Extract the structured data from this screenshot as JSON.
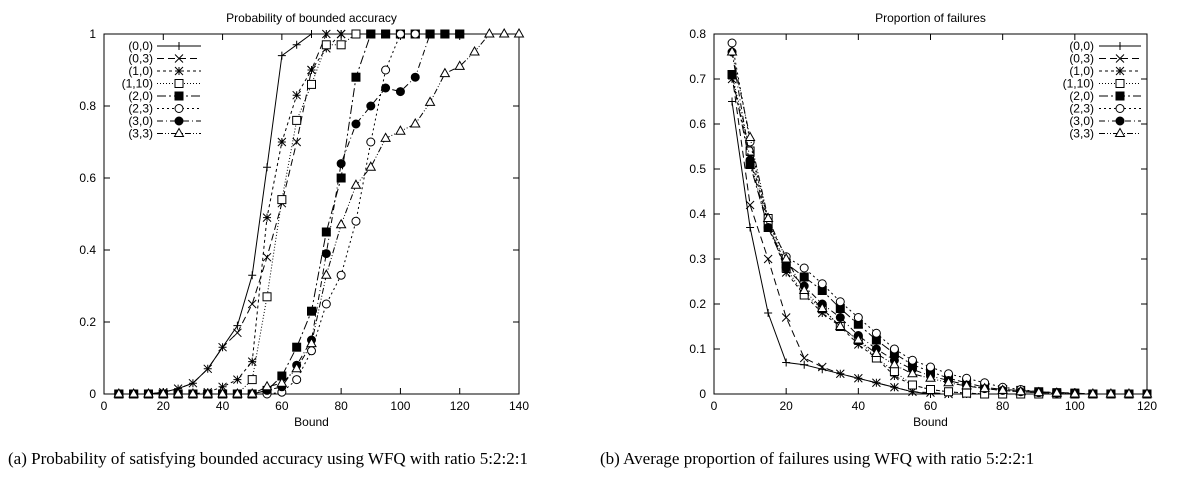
{
  "chart_data": [
    {
      "type": "line",
      "title": "Probability of bounded accuracy",
      "xlabel": "Bound",
      "ylabel": "",
      "xlim": [
        0,
        140
      ],
      "ylim": [
        0,
        1
      ],
      "xticks": [
        0,
        20,
        40,
        60,
        80,
        100,
        120,
        140
      ],
      "yticks": [
        0,
        0.2,
        0.4,
        0.6,
        0.8,
        1
      ],
      "legend_position": "top-left",
      "series": [
        {
          "name": "(0,0)",
          "marker": "plus",
          "dash": "",
          "x": [
            5,
            10,
            15,
            20,
            25,
            30,
            35,
            40,
            45,
            50,
            55,
            60,
            65,
            70,
            75,
            80,
            85,
            90,
            95,
            100,
            105,
            110,
            115,
            120
          ],
          "y": [
            0,
            0,
            0,
            0.005,
            0.015,
            0.03,
            0.07,
            0.13,
            0.19,
            0.33,
            0.63,
            0.94,
            0.97,
            1,
            1,
            1,
            1,
            1,
            1,
            1,
            1,
            1,
            1,
            1
          ]
        },
        {
          "name": "(0,3)",
          "marker": "cross",
          "dash": "7,4",
          "x": [
            5,
            10,
            15,
            20,
            25,
            30,
            35,
            40,
            45,
            50,
            55,
            60,
            65,
            70,
            75,
            80,
            85,
            90,
            95,
            100,
            105,
            110,
            115,
            120
          ],
          "y": [
            0,
            0,
            0,
            0.005,
            0.015,
            0.03,
            0.07,
            0.13,
            0.17,
            0.25,
            0.38,
            0.53,
            0.7,
            0.9,
            1,
            1,
            1,
            1,
            1,
            1,
            1,
            1,
            1,
            1
          ]
        },
        {
          "name": "(1,0)",
          "marker": "star",
          "dash": "3,3",
          "x": [
            5,
            10,
            15,
            20,
            25,
            30,
            35,
            40,
            45,
            50,
            55,
            60,
            65,
            70,
            75,
            80,
            85,
            90,
            95,
            100,
            105,
            110,
            115,
            120
          ],
          "y": [
            0,
            0,
            0,
            0,
            0,
            0,
            0.005,
            0.02,
            0.04,
            0.09,
            0.49,
            0.7,
            0.83,
            0.9,
            0.96,
            1,
            1,
            1,
            1,
            1,
            1,
            1,
            1,
            1
          ]
        },
        {
          "name": "(1,10)",
          "marker": "square-open",
          "dash": "1,2",
          "x": [
            5,
            10,
            15,
            20,
            25,
            30,
            35,
            40,
            45,
            50,
            55,
            60,
            65,
            70,
            75,
            80,
            85,
            90,
            95,
            100,
            105,
            110,
            115,
            120
          ],
          "y": [
            0,
            0,
            0,
            0,
            0,
            0,
            0,
            0,
            0,
            0.04,
            0.27,
            0.54,
            0.76,
            0.86,
            0.97,
            0.97,
            1,
            1,
            1,
            1,
            1,
            1,
            1,
            1
          ]
        },
        {
          "name": "(2,0)",
          "marker": "square-filled",
          "dash": "9,3,2,3",
          "x": [
            5,
            10,
            15,
            20,
            25,
            30,
            35,
            40,
            45,
            50,
            55,
            60,
            65,
            70,
            75,
            80,
            85,
            90,
            95,
            100,
            105,
            110,
            115,
            120
          ],
          "y": [
            0,
            0,
            0,
            0,
            0,
            0,
            0,
            0,
            0,
            0,
            0.01,
            0.05,
            0.13,
            0.23,
            0.45,
            0.6,
            0.88,
            1,
            1,
            1,
            1,
            1,
            1,
            1
          ]
        },
        {
          "name": "(2,3)",
          "marker": "circle-open",
          "dash": "2,3",
          "x": [
            5,
            10,
            15,
            20,
            25,
            30,
            35,
            40,
            45,
            50,
            55,
            60,
            65,
            70,
            75,
            80,
            85,
            90,
            95,
            100,
            105,
            110,
            115,
            120
          ],
          "y": [
            0,
            0,
            0,
            0,
            0,
            0,
            0,
            0,
            0,
            0,
            0,
            0.005,
            0.04,
            0.12,
            0.25,
            0.33,
            0.48,
            0.7,
            0.9,
            1,
            1,
            1,
            1,
            1
          ]
        },
        {
          "name": "(3,0)",
          "marker": "circle-filled",
          "dash": "6,3,1,3",
          "x": [
            5,
            10,
            15,
            20,
            25,
            30,
            35,
            40,
            45,
            50,
            55,
            60,
            65,
            70,
            75,
            80,
            85,
            90,
            95,
            100,
            105,
            110,
            115,
            120
          ],
          "y": [
            0,
            0,
            0,
            0,
            0,
            0,
            0,
            0,
            0,
            0,
            0.01,
            0.02,
            0.08,
            0.15,
            0.39,
            0.64,
            0.75,
            0.8,
            0.85,
            0.84,
            0.88,
            1,
            1,
            1
          ]
        },
        {
          "name": "(3,3)",
          "marker": "triangle-open",
          "dash": "6,2,1,2,1,2",
          "x": [
            5,
            10,
            15,
            20,
            25,
            30,
            35,
            40,
            45,
            50,
            55,
            60,
            65,
            70,
            75,
            80,
            85,
            90,
            95,
            100,
            105,
            110,
            115,
            120,
            125,
            130,
            135,
            140
          ],
          "y": [
            0,
            0,
            0,
            0,
            0,
            0,
            0,
            0,
            0,
            0,
            0.02,
            0.03,
            0.07,
            0.14,
            0.33,
            0.47,
            0.58,
            0.63,
            0.71,
            0.73,
            0.75,
            0.81,
            0.89,
            0.91,
            0.95,
            1,
            1,
            1
          ]
        }
      ]
    },
    {
      "type": "line",
      "title": "Proportion of failures",
      "xlabel": "Bound",
      "ylabel": "",
      "xlim": [
        0,
        120
      ],
      "ylim": [
        0,
        0.8
      ],
      "xticks": [
        0,
        20,
        40,
        60,
        80,
        100,
        120
      ],
      "yticks": [
        0,
        0.1,
        0.2,
        0.3,
        0.4,
        0.5,
        0.6,
        0.7,
        0.8
      ],
      "legend_position": "top-right",
      "series": [
        {
          "name": "(0,0)",
          "marker": "plus",
          "dash": "",
          "x": [
            5,
            10,
            15,
            20,
            25,
            30,
            35,
            40,
            45,
            50,
            55,
            60,
            65,
            70,
            75,
            80,
            85,
            90,
            95,
            100,
            105,
            110,
            115,
            120
          ],
          "y": [
            0.65,
            0.37,
            0.18,
            0.07,
            0.065,
            0.055,
            0.045,
            0.035,
            0.025,
            0.015,
            0.005,
            0,
            0,
            0,
            0,
            0,
            0,
            0,
            0,
            0,
            0,
            0,
            0,
            0
          ]
        },
        {
          "name": "(0,3)",
          "marker": "cross",
          "dash": "7,4",
          "x": [
            5,
            10,
            15,
            20,
            25,
            30,
            35,
            40,
            45,
            50,
            55,
            60,
            65,
            70,
            75,
            80,
            85,
            90,
            95,
            100,
            105,
            110,
            115,
            120
          ],
          "y": [
            0.71,
            0.42,
            0.3,
            0.17,
            0.08,
            0.06,
            0.045,
            0.035,
            0.025,
            0.015,
            0.005,
            0.003,
            0,
            0,
            0,
            0,
            0,
            0,
            0,
            0,
            0,
            0,
            0,
            0
          ]
        },
        {
          "name": "(1,0)",
          "marker": "star",
          "dash": "3,3",
          "x": [
            5,
            10,
            15,
            20,
            25,
            30,
            35,
            40,
            45,
            50,
            55,
            60,
            65,
            70,
            75,
            80,
            85,
            90,
            95,
            100,
            105,
            110,
            115,
            120
          ],
          "y": [
            0.7,
            0.53,
            0.38,
            0.27,
            0.22,
            0.18,
            0.15,
            0.11,
            0.08,
            0.04,
            0.02,
            0.01,
            0.005,
            0.002,
            0,
            0,
            0,
            0,
            0,
            0,
            0,
            0,
            0,
            0
          ]
        },
        {
          "name": "(1,10)",
          "marker": "square-open",
          "dash": "1,2",
          "x": [
            5,
            10,
            15,
            20,
            25,
            30,
            35,
            40,
            45,
            50,
            55,
            60,
            65,
            70,
            75,
            80,
            85,
            90,
            95,
            100,
            105,
            110,
            115,
            120
          ],
          "y": [
            0.71,
            0.54,
            0.39,
            0.28,
            0.22,
            0.19,
            0.15,
            0.12,
            0.08,
            0.05,
            0.02,
            0.01,
            0.005,
            0.002,
            0,
            0,
            0,
            0,
            0,
            0,
            0,
            0,
            0,
            0
          ]
        },
        {
          "name": "(2,0)",
          "marker": "square-filled",
          "dash": "9,3,2,3",
          "x": [
            5,
            10,
            15,
            20,
            25,
            30,
            35,
            40,
            45,
            50,
            55,
            60,
            65,
            70,
            75,
            80,
            85,
            90,
            95,
            100,
            105,
            110,
            115,
            120
          ],
          "y": [
            0.71,
            0.51,
            0.37,
            0.29,
            0.26,
            0.23,
            0.19,
            0.155,
            0.12,
            0.09,
            0.065,
            0.05,
            0.035,
            0.025,
            0.015,
            0.01,
            0.008,
            0.005,
            0.003,
            0.002,
            0,
            0,
            0,
            0
          ]
        },
        {
          "name": "(2,3)",
          "marker": "circle-open",
          "dash": "2,3",
          "x": [
            5,
            10,
            15,
            20,
            25,
            30,
            35,
            40,
            45,
            50,
            55,
            60,
            65,
            70,
            75,
            80,
            85,
            90,
            95,
            100,
            105,
            110,
            115,
            120
          ],
          "y": [
            0.78,
            0.56,
            0.38,
            0.305,
            0.28,
            0.245,
            0.205,
            0.17,
            0.135,
            0.1,
            0.075,
            0.06,
            0.045,
            0.035,
            0.025,
            0.015,
            0.01,
            0.005,
            0.003,
            0.002,
            0,
            0,
            0,
            0
          ]
        },
        {
          "name": "(3,0)",
          "marker": "circle-filled",
          "dash": "6,3,1,3",
          "x": [
            5,
            10,
            15,
            20,
            25,
            30,
            35,
            40,
            45,
            50,
            55,
            60,
            65,
            70,
            75,
            80,
            85,
            90,
            95,
            100,
            105,
            110,
            115,
            120
          ],
          "y": [
            0.76,
            0.52,
            0.37,
            0.28,
            0.24,
            0.2,
            0.17,
            0.13,
            0.1,
            0.075,
            0.055,
            0.04,
            0.03,
            0.02,
            0.012,
            0.008,
            0.005,
            0.003,
            0.002,
            0,
            0,
            0,
            0,
            0
          ]
        },
        {
          "name": "(3,3)",
          "marker": "triangle-open",
          "dash": "6,2,1,2,1,2",
          "x": [
            5,
            10,
            15,
            20,
            25,
            30,
            35,
            40,
            45,
            50,
            55,
            60,
            65,
            70,
            75,
            80,
            85,
            90,
            95,
            100,
            105,
            110,
            115,
            120
          ],
          "y": [
            0.76,
            0.57,
            0.39,
            0.3,
            0.23,
            0.19,
            0.15,
            0.12,
            0.09,
            0.065,
            0.045,
            0.035,
            0.025,
            0.018,
            0.012,
            0.008,
            0.005,
            0.003,
            0.002,
            0,
            0,
            0,
            0,
            0
          ]
        }
      ]
    }
  ],
  "captions": {
    "a": "(a) Probability of satisfying bounded accuracy using WFQ with ratio 5:2:2:1",
    "b": "(b) Average proportion of failures using WFQ with ratio 5:2:2:1"
  }
}
